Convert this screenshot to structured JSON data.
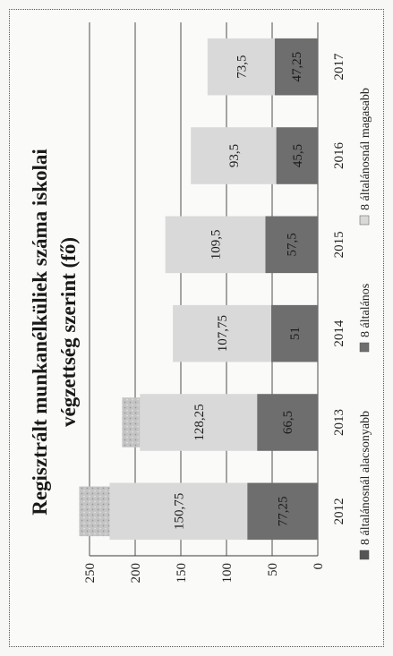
{
  "chart_data": {
    "type": "bar",
    "stacked": true,
    "title_lines": [
      "Regisztrált munkanélküliek száma iskolai",
      "végzettség szerint (fő)"
    ],
    "categories": [
      "2012",
      "2013",
      "2014",
      "2015",
      "2016",
      "2017"
    ],
    "series": [
      {
        "name": "8 általánosnál alacsonyabb",
        "color": "#b8b8b8",
        "values": [
          0,
          0,
          0,
          0,
          0,
          0
        ],
        "labels": [
          "",
          "",
          "",
          "",
          "",
          ""
        ]
      },
      {
        "name": "8 általános",
        "color": "#6e6e6e",
        "values": [
          77.25,
          66.5,
          51,
          57.5,
          45.5,
          47.25
        ],
        "labels": [
          "77,25",
          "66,5",
          "51",
          "57,5",
          "45,5",
          "47,25"
        ]
      },
      {
        "name": "8 általánosnál magasabb",
        "color": "#d9d9d9",
        "values": [
          150.75,
          128.25,
          107.75,
          109.5,
          93.5,
          73.5
        ],
        "labels": [
          "150,75",
          "128,25",
          "107,75",
          "109,5",
          "93,5",
          "73,5"
        ]
      }
    ],
    "ylim": [
      0,
      250
    ],
    "yticks": [
      0,
      50,
      100,
      150,
      200,
      250
    ],
    "ytick_labels": [
      "0",
      "50",
      "100",
      "150",
      "200",
      "250"
    ],
    "grid": true,
    "legend_position": "bottom"
  }
}
